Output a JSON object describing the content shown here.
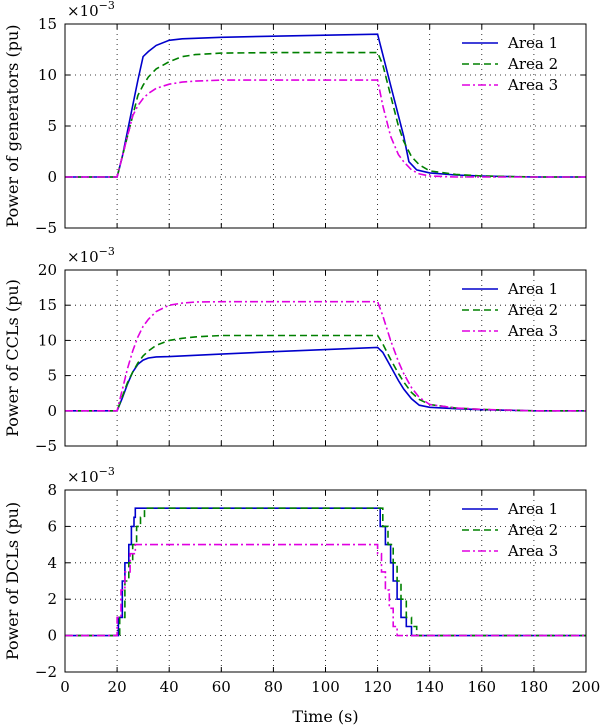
{
  "chart_data": [
    {
      "type": "line",
      "ylabel": "Power of generators (pu)",
      "multiplier_base": "×10",
      "multiplier_exp": "−3",
      "xlim": [
        0,
        200
      ],
      "ylim": [
        -5,
        15
      ],
      "xticks": [
        "0",
        "20",
        "40",
        "60",
        "80",
        "100",
        "120",
        "140",
        "160",
        "180",
        "200"
      ],
      "yticks": [
        "−5",
        "0",
        "5",
        "10",
        "15"
      ],
      "ytick_values": [
        -5,
        0,
        5,
        10,
        15
      ],
      "grid": true,
      "legend_position": "top-right",
      "series": [
        {
          "name": "Area 1",
          "color": "#0000cc",
          "style": "solid",
          "x": [
            0,
            20,
            22,
            24,
            26,
            28,
            30,
            32,
            35,
            40,
            45,
            50,
            60,
            80,
            100,
            120,
            125,
            130,
            132,
            135,
            140,
            150,
            160,
            180,
            200
          ],
          "y": [
            0,
            0,
            2,
            4.5,
            7,
            9.5,
            11.8,
            12.3,
            12.9,
            13.4,
            13.55,
            13.6,
            13.7,
            13.8,
            13.9,
            14.0,
            9,
            4,
            1.5,
            0.7,
            0.4,
            0.2,
            0.1,
            0,
            0
          ]
        },
        {
          "name": "Area 2",
          "color": "#008000",
          "style": "dashed",
          "x": [
            0,
            20,
            22,
            24,
            26,
            28,
            30,
            32,
            35,
            40,
            45,
            50,
            60,
            80,
            100,
            120,
            122,
            125,
            128,
            130,
            133,
            136,
            140,
            150,
            160,
            180,
            200
          ],
          "y": [
            0,
            0,
            2,
            4,
            6,
            8,
            9,
            9.8,
            10.6,
            11.3,
            11.8,
            12,
            12.15,
            12.2,
            12.2,
            12.2,
            11,
            8,
            5,
            3.5,
            2,
            1.2,
            0.6,
            0.25,
            0.1,
            0,
            0
          ]
        },
        {
          "name": "Area 3",
          "color": "#e000e0",
          "style": "dashdot",
          "x": [
            0,
            20,
            22,
            24,
            26,
            28,
            30,
            32,
            35,
            40,
            45,
            50,
            60,
            80,
            100,
            120,
            122,
            125,
            128,
            130,
            133,
            136,
            140,
            150,
            160,
            180,
            200
          ],
          "y": [
            0,
            0,
            2,
            4,
            6,
            7,
            7.7,
            8.2,
            8.7,
            9.1,
            9.3,
            9.4,
            9.5,
            9.5,
            9.5,
            9.5,
            7,
            4,
            2.2,
            1.5,
            0.7,
            0.3,
            0.1,
            0,
            0,
            0,
            0
          ]
        }
      ]
    },
    {
      "type": "line",
      "ylabel": "Power of CCLs (pu)",
      "multiplier_base": "×10",
      "multiplier_exp": "−3",
      "xlim": [
        0,
        200
      ],
      "ylim": [
        -5,
        20
      ],
      "xticks": [
        "0",
        "20",
        "40",
        "60",
        "80",
        "100",
        "120",
        "140",
        "160",
        "180",
        "200"
      ],
      "yticks": [
        "−5",
        "0",
        "5",
        "10",
        "15",
        "20"
      ],
      "ytick_values": [
        -5,
        0,
        5,
        10,
        15,
        20
      ],
      "grid": true,
      "legend_position": "top-right",
      "series": [
        {
          "name": "Area 1",
          "color": "#0000cc",
          "style": "solid",
          "x": [
            0,
            20,
            22,
            24,
            26,
            28,
            30,
            32,
            35,
            40,
            60,
            80,
            100,
            120,
            122,
            125,
            128,
            130,
            133,
            136,
            140,
            150,
            160,
            180,
            200
          ],
          "y": [
            0,
            0,
            1.8,
            3.8,
            5.5,
            6.6,
            7.2,
            7.5,
            7.65,
            7.7,
            8.05,
            8.4,
            8.7,
            9.0,
            8.3,
            6.3,
            4.3,
            3.1,
            1.7,
            0.8,
            0.5,
            0.3,
            0.15,
            0,
            0
          ]
        },
        {
          "name": "Area 2",
          "color": "#008000",
          "style": "dashed",
          "x": [
            0,
            20,
            22,
            24,
            26,
            28,
            30,
            32,
            35,
            40,
            45,
            50,
            60,
            80,
            100,
            120,
            122,
            125,
            128,
            130,
            133,
            136,
            140,
            150,
            160,
            180,
            200
          ],
          "y": [
            0,
            0,
            2,
            4,
            5.5,
            6.8,
            7.8,
            8.5,
            9.3,
            10,
            10.3,
            10.5,
            10.7,
            10.7,
            10.7,
            10.7,
            9.5,
            7.3,
            5.3,
            4.1,
            2.6,
            1.6,
            0.9,
            0.4,
            0.2,
            0,
            0
          ]
        },
        {
          "name": "Area 3",
          "color": "#e000e0",
          "style": "dashdot",
          "x": [
            0,
            20,
            22,
            24,
            26,
            28,
            30,
            32,
            35,
            40,
            45,
            50,
            60,
            80,
            100,
            120,
            122,
            125,
            128,
            130,
            133,
            136,
            140,
            150,
            160,
            180,
            200
          ],
          "y": [
            0,
            0,
            3,
            6,
            8.5,
            10.5,
            12,
            13,
            14.1,
            15,
            15.3,
            15.45,
            15.5,
            15.5,
            15.5,
            15.5,
            13.5,
            10,
            7,
            5.3,
            3.3,
            1.9,
            0.9,
            0.4,
            0.2,
            0,
            0
          ]
        }
      ]
    },
    {
      "type": "line",
      "ylabel": "Power of DCLs (pu)",
      "xlabel": "Time (s)",
      "multiplier_base": "×10",
      "multiplier_exp": "−3",
      "xlim": [
        0,
        200
      ],
      "ylim": [
        -2,
        8
      ],
      "xticks": [
        "0",
        "20",
        "40",
        "60",
        "80",
        "100",
        "120",
        "140",
        "160",
        "180",
        "200"
      ],
      "yticks": [
        "−2",
        "0",
        "2",
        "4",
        "6",
        "8"
      ],
      "ytick_values": [
        -2,
        0,
        2,
        4,
        6,
        8
      ],
      "grid": true,
      "legend_position": "top-right",
      "series": [
        {
          "name": "Area 1",
          "color": "#0000cc",
          "style": "solid",
          "x": [
            0,
            20.5,
            20.5,
            22,
            22,
            23,
            23,
            24.5,
            24.5,
            25.5,
            25.5,
            26.5,
            26.5,
            27,
            27,
            121,
            121,
            123,
            123,
            125,
            125,
            126,
            126,
            127.5,
            127.5,
            129,
            129,
            131,
            131,
            133,
            133,
            200
          ],
          "y": [
            0,
            0,
            1,
            1,
            3,
            3,
            4,
            4,
            5,
            5,
            6,
            6,
            6.5,
            6.5,
            7,
            7,
            6,
            6,
            5,
            5,
            4,
            4,
            3,
            3,
            2,
            2,
            1,
            1,
            0.5,
            0.5,
            0,
            0
          ]
        },
        {
          "name": "Area 2",
          "color": "#008000",
          "style": "dashed",
          "x": [
            0,
            21,
            21,
            23,
            23,
            24.5,
            24.5,
            26,
            26,
            27.5,
            27.5,
            29,
            29,
            30.5,
            30.5,
            122,
            122,
            124,
            124,
            126,
            126,
            127.5,
            127.5,
            129,
            129,
            131,
            131,
            133,
            133,
            135,
            135,
            200
          ],
          "y": [
            0,
            0,
            1,
            1,
            3,
            3,
            4,
            4,
            5,
            5,
            6,
            6,
            6.5,
            6.5,
            7,
            7,
            6,
            6,
            5,
            5,
            4,
            4,
            3,
            3,
            2,
            2,
            1,
            1,
            0.5,
            0.5,
            0,
            0
          ]
        },
        {
          "name": "Area 3",
          "color": "#e000e0",
          "style": "dashdot",
          "x": [
            0,
            20,
            20,
            21.5,
            21.5,
            23,
            23,
            25,
            25,
            27,
            27,
            120,
            120,
            121.5,
            121.5,
            123,
            123,
            124.5,
            124.5,
            126,
            126,
            127.5,
            127.5,
            200
          ],
          "y": [
            0,
            0,
            1,
            1,
            2.5,
            2.5,
            3.5,
            3.5,
            4.5,
            4.5,
            5,
            5,
            4.5,
            4.5,
            3.5,
            3.5,
            2.5,
            2.5,
            1.5,
            1.5,
            0.5,
            0.5,
            0,
            0
          ]
        }
      ]
    }
  ]
}
